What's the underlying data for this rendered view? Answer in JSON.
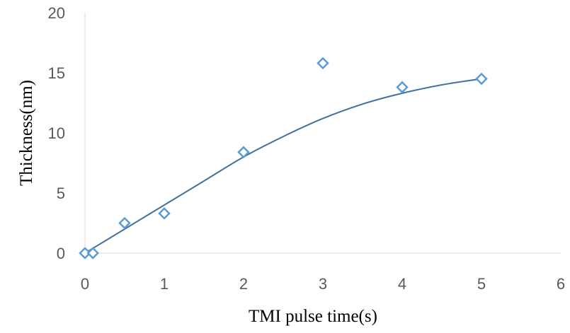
{
  "chart_data": {
    "type": "scatter",
    "title": "",
    "xlabel": "TMI pulse time(s)",
    "ylabel": "Thickness(nm)",
    "xlim": [
      0,
      6
    ],
    "ylim": [
      0,
      20
    ],
    "x_ticks": [
      "0",
      "1",
      "2",
      "3",
      "4",
      "5",
      "6"
    ],
    "y_ticks": [
      "0",
      "5",
      "10",
      "15",
      "20"
    ],
    "grid": false,
    "legend": "none",
    "series": [
      {
        "marker": "diamond-open",
        "color": "#5B9BD5",
        "points": [
          {
            "x": 0,
            "y": 0
          },
          {
            "x": 0.1,
            "y": 0
          },
          {
            "x": 0.5,
            "y": 2.5
          },
          {
            "x": 1,
            "y": 3.3
          },
          {
            "x": 2,
            "y": 8.4
          },
          {
            "x": 3,
            "y": 15.8
          },
          {
            "x": 4,
            "y": 13.8
          },
          {
            "x": 5,
            "y": 14.5
          }
        ]
      }
    ],
    "trendline": {
      "color": "#41719C",
      "points": [
        {
          "x": 0,
          "y": 0
        },
        {
          "x": 0.5,
          "y": 2.0
        },
        {
          "x": 1,
          "y": 4.0
        },
        {
          "x": 1.5,
          "y": 6.0
        },
        {
          "x": 2,
          "y": 8.0
        },
        {
          "x": 2.5,
          "y": 9.7
        },
        {
          "x": 3,
          "y": 11.2
        },
        {
          "x": 3.5,
          "y": 12.4
        },
        {
          "x": 4,
          "y": 13.3
        },
        {
          "x": 4.5,
          "y": 14.0
        },
        {
          "x": 5,
          "y": 14.5
        }
      ]
    }
  }
}
